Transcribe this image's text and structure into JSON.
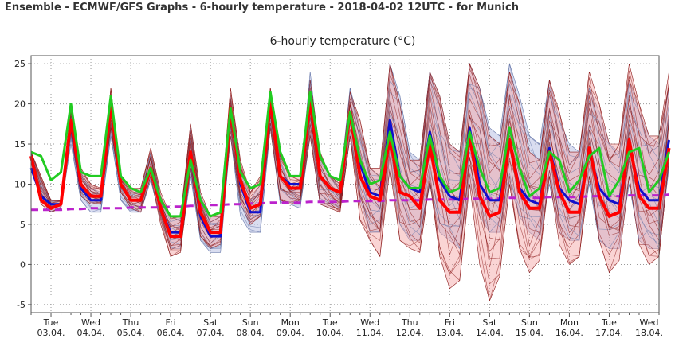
{
  "header": {
    "title": "Ensemble - ECMWF/GFS Graphs - 6-hourly temperature - 2018-04-02 12UTC - for Munich"
  },
  "colors": {
    "ensemble_ecmwf": "#8b1a1a",
    "ensemble_gfs": "#6677aa",
    "ensemble_ecmwf_band": "#f4a0a0",
    "ensemble_gfs_band": "#aab4dd",
    "ecmwf_mean": "#ff0000",
    "gfs_mean": "#1010cc",
    "control": "#22cc22",
    "climate": "#bb22cc",
    "grid": "#999999",
    "frame": "#555555"
  },
  "chart_data": {
    "type": "line",
    "title": "6-hourly temperature (°C)",
    "xlabel": "",
    "ylabel": "",
    "ylim": [
      -6,
      26
    ],
    "yticks": [
      -5,
      0,
      5,
      10,
      15,
      20,
      25
    ],
    "grid": true,
    "x_start": "2018-04-02 12:00",
    "x_step_hours": 6,
    "x_end": "2018-04-18 06:00",
    "day_ticks": [
      {
        "day": "Tue",
        "date": "03.04."
      },
      {
        "day": "Wed",
        "date": "04.04."
      },
      {
        "day": "Thu",
        "date": "05.04."
      },
      {
        "day": "Fri",
        "date": "06.04."
      },
      {
        "day": "Sat",
        "date": "07.04."
      },
      {
        "day": "Sun",
        "date": "08.04."
      },
      {
        "day": "Mon",
        "date": "09.04."
      },
      {
        "day": "Tue",
        "date": "10.04."
      },
      {
        "day": "Wed",
        "date": "11.04."
      },
      {
        "day": "Thu",
        "date": "12.04."
      },
      {
        "day": "Fri",
        "date": "13.04."
      },
      {
        "day": "Sat",
        "date": "14.04."
      },
      {
        "day": "Sun",
        "date": "15.04."
      },
      {
        "day": "Mon",
        "date": "16.04."
      },
      {
        "day": "Tue",
        "date": "17.04."
      },
      {
        "day": "Wed",
        "date": "18.04."
      }
    ],
    "series": [
      {
        "key": "ecmwf_band",
        "values_min": [
          13,
          7.5,
          6.5,
          7,
          16,
          8.5,
          7.5,
          7.5,
          17,
          9,
          7,
          6.5,
          11,
          5,
          1,
          1.5,
          12,
          3.5,
          2,
          2.5,
          16,
          7.5,
          5,
          6,
          17,
          8,
          7.5,
          7.5,
          16,
          7.5,
          7,
          6.5,
          16,
          5.5,
          3,
          1,
          12,
          3,
          2,
          1.5,
          10.5,
          1,
          -3,
          -2,
          10,
          0,
          -4.5,
          -1.5,
          10,
          2,
          -1,
          0.5,
          11,
          2.5,
          0,
          1,
          11,
          3,
          -1,
          0.5,
          11,
          2.5,
          0,
          1,
          13
        ]
      },
      {
        "key": "ecmwf_band_max",
        "values_max": [
          14,
          11,
          8,
          8,
          19,
          12,
          10,
          9.5,
          22,
          11,
          9.5,
          9.5,
          14.5,
          9,
          6,
          6,
          17.5,
          9,
          6,
          6.5,
          22,
          13,
          9,
          11,
          22,
          14,
          11,
          11,
          23,
          14,
          11,
          10,
          21.5,
          18,
          12,
          12,
          25,
          20,
          13,
          13,
          24,
          21,
          15,
          14,
          25,
          22,
          16,
          15,
          24,
          20,
          14,
          13,
          23,
          19,
          14,
          14,
          24,
          20,
          15,
          15,
          25,
          20,
          16,
          16,
          24
        ]
      },
      {
        "key": "gfs_band",
        "values_min": [
          12,
          8,
          6.5,
          7,
          15,
          8,
          6.5,
          6.5,
          16,
          8,
          6.5,
          6.5,
          10.5,
          5.5,
          2,
          2,
          11,
          3,
          1.5,
          1.5,
          16,
          6,
          4,
          4,
          17,
          7.5,
          7.5,
          7,
          16,
          7.5,
          7,
          7,
          16,
          8,
          4,
          4,
          12,
          5,
          3,
          3,
          10,
          4,
          3,
          2,
          10,
          6,
          4,
          4,
          10,
          6,
          4,
          3,
          10,
          4,
          3,
          3,
          10,
          3,
          2,
          2,
          10,
          3,
          2,
          2,
          12
        ]
      },
      {
        "key": "gfs_band_max",
        "values_max": [
          14,
          10.5,
          8,
          8,
          18.5,
          11.5,
          9.5,
          9,
          20.5,
          10.5,
          9,
          9,
          14,
          8.5,
          6,
          6,
          17,
          8.5,
          6,
          6,
          21,
          12,
          8,
          10,
          21,
          13,
          10,
          10,
          24,
          13,
          11,
          10,
          22,
          17,
          12,
          11,
          25,
          21,
          14,
          13,
          24,
          21,
          15,
          14,
          25,
          22,
          17,
          16,
          25,
          21,
          16,
          15,
          23,
          18,
          15,
          14,
          22,
          19,
          15,
          14,
          23,
          19,
          16,
          15,
          22
        ]
      },
      {
        "key": "ecmwf_mean",
        "values": [
          13.5,
          8,
          7,
          7.5,
          18,
          10,
          8.5,
          8.5,
          20,
          10,
          8,
          8,
          12,
          7,
          3.5,
          3.5,
          14,
          6.5,
          4,
          4,
          19.5,
          10.5,
          7,
          7.5,
          20.5,
          11,
          9.5,
          9.5,
          20.5,
          11,
          9.5,
          9,
          19,
          11,
          8.5,
          8,
          16,
          9,
          8.5,
          7,
          15,
          8,
          6.5,
          6.5,
          16,
          8.5,
          6,
          6.5,
          15.5,
          9,
          7,
          7,
          14,
          9,
          6.5,
          6.5,
          14.5,
          8.5,
          6,
          6.5,
          15.5,
          8.5,
          7,
          7,
          14.5
        ]
      },
      {
        "key": "gfs_mean",
        "values": [
          12,
          8.5,
          7.5,
          7.5,
          17.5,
          9.5,
          8,
          8,
          20,
          10,
          8,
          8,
          12,
          7,
          4,
          4,
          13.5,
          6,
          3.5,
          3.5,
          19.5,
          10,
          6.5,
          6.5,
          20.5,
          11,
          10,
          10,
          21,
          11,
          9.5,
          9,
          19,
          12.5,
          9,
          8.5,
          18,
          11,
          9.5,
          9,
          16.5,
          10.5,
          8.5,
          8,
          17,
          10,
          8,
          8,
          15.5,
          9.5,
          8,
          7.5,
          14.5,
          9.5,
          8,
          7.5,
          14,
          9.5,
          8,
          7.5,
          15,
          9.5,
          8,
          8,
          15.5
        ]
      },
      {
        "key": "control",
        "values": [
          14,
          13.5,
          10.5,
          11.5,
          20,
          11.5,
          11,
          11,
          21,
          11,
          9.5,
          9,
          12,
          8,
          6,
          6,
          13,
          8,
          6,
          6.5,
          19.5,
          11.5,
          9.5,
          10,
          21.5,
          14,
          11,
          11,
          21.5,
          13.5,
          11,
          10.5,
          19,
          13,
          10,
          10.5,
          16.5,
          11,
          9.5,
          9.5,
          16,
          11,
          9,
          9.5,
          16.5,
          12,
          9,
          9.5,
          17,
          12,
          8.5,
          9.5,
          14,
          13,
          9,
          10.5,
          13.5,
          14.5,
          8.5,
          10.5,
          14,
          14.5,
          9,
          10.5,
          14
        ]
      },
      {
        "key": "climate",
        "values": [
          6.8,
          6.8,
          6.8,
          6.8,
          6.9,
          6.9,
          7,
          7,
          7,
          7,
          7.1,
          7.1,
          7.1,
          7.1,
          7.2,
          7.2,
          7.3,
          7.3,
          7.4,
          7.4,
          7.5,
          7.5,
          7.6,
          7.6,
          7.7,
          7.7,
          7.7,
          7.7,
          7.8,
          7.8,
          7.8,
          7.8,
          7.9,
          7.9,
          7.9,
          7.9,
          8,
          8,
          8,
          8,
          8.1,
          8.1,
          8.1,
          8.1,
          8.2,
          8.2,
          8.2,
          8.2,
          8.3,
          8.3,
          8.3,
          8.3,
          8.4,
          8.4,
          8.4,
          8.4,
          8.5,
          8.5,
          8.5,
          8.5,
          8.6,
          8.6,
          8.6,
          8.6,
          8.7
        ]
      }
    ]
  }
}
